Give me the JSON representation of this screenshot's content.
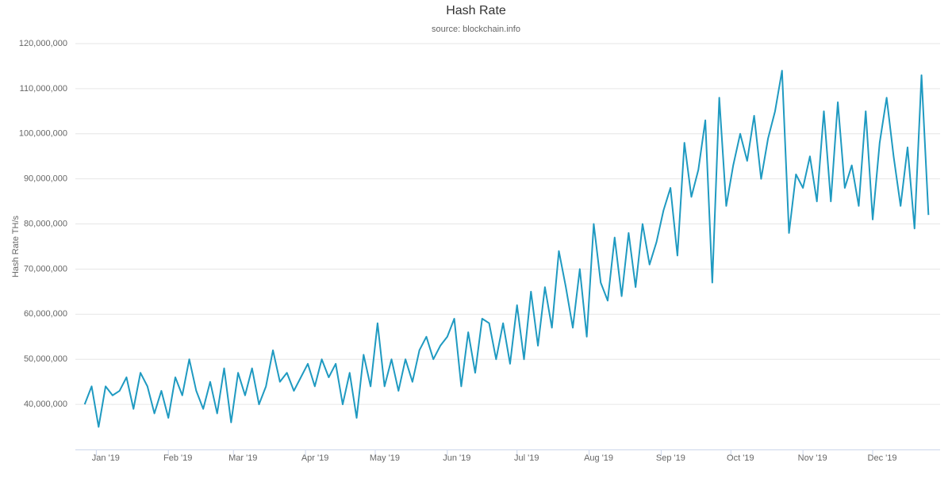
{
  "chart_data": {
    "type": "line",
    "title": "Hash Rate",
    "subtitle": "source: blockchain.info",
    "y_label": "Hash Rate TH/s",
    "color": "#1f9ac1",
    "grid": true,
    "xlim": [
      -9,
      363
    ],
    "ylim": [
      30000000,
      120000000
    ],
    "xticks": [
      {
        "value": 0,
        "label": "Jan '19"
      },
      {
        "value": 31,
        "label": "Feb '19"
      },
      {
        "value": 59,
        "label": "Mar '19"
      },
      {
        "value": 90,
        "label": "Apr '19"
      },
      {
        "value": 120,
        "label": "May '19"
      },
      {
        "value": 151,
        "label": "Jun '19"
      },
      {
        "value": 181,
        "label": "Jul '19"
      },
      {
        "value": 212,
        "label": "Aug '19"
      },
      {
        "value": 243,
        "label": "Sep '19"
      },
      {
        "value": 273,
        "label": "Oct '19"
      },
      {
        "value": 304,
        "label": "Nov '19"
      },
      {
        "value": 334,
        "label": "Dec '19"
      }
    ],
    "yticks": [
      {
        "value": 40000000,
        "label": "40,000,000"
      },
      {
        "value": 50000000,
        "label": "50,000,000"
      },
      {
        "value": 60000000,
        "label": "60,000,000"
      },
      {
        "value": 70000000,
        "label": "70,000,000"
      },
      {
        "value": 80000000,
        "label": "80,000,000"
      },
      {
        "value": 90000000,
        "label": "90,000,000"
      },
      {
        "value": 100000000,
        "label": "100,000,000"
      },
      {
        "value": 110000000,
        "label": "110,000,000"
      },
      {
        "value": 120000000,
        "label": "120,000,000"
      }
    ],
    "x": [
      -5,
      -2,
      1,
      4,
      7,
      10,
      13,
      16,
      19,
      22,
      25,
      28,
      31,
      34,
      37,
      40,
      43,
      46,
      49,
      52,
      55,
      58,
      61,
      64,
      67,
      70,
      73,
      76,
      79,
      82,
      85,
      88,
      91,
      94,
      97,
      100,
      103,
      106,
      109,
      112,
      115,
      118,
      121,
      124,
      127,
      130,
      133,
      136,
      139,
      142,
      145,
      148,
      151,
      154,
      157,
      160,
      163,
      166,
      169,
      172,
      175,
      178,
      181,
      184,
      187,
      190,
      193,
      196,
      199,
      202,
      205,
      208,
      211,
      214,
      217,
      220,
      223,
      226,
      229,
      232,
      235,
      238,
      241,
      244,
      247,
      250,
      253,
      256,
      259,
      262,
      265,
      268,
      271,
      274,
      277,
      280,
      283,
      286,
      289,
      292,
      295,
      298,
      301,
      304,
      307,
      310,
      313,
      316,
      319,
      322,
      325,
      328,
      331,
      334,
      337,
      340,
      343,
      346,
      349,
      352,
      355,
      358
    ],
    "values": [
      40000000,
      44000000,
      35000000,
      44000000,
      42000000,
      43000000,
      46000000,
      39000000,
      47000000,
      44000000,
      38000000,
      43000000,
      37000000,
      46000000,
      42000000,
      50000000,
      43000000,
      39000000,
      45000000,
      38000000,
      48000000,
      36000000,
      47000000,
      42000000,
      48000000,
      40000000,
      44000000,
      52000000,
      45000000,
      47000000,
      43000000,
      46000000,
      49000000,
      44000000,
      50000000,
      46000000,
      49000000,
      40000000,
      47000000,
      37000000,
      51000000,
      44000000,
      58000000,
      44000000,
      50000000,
      43000000,
      50000000,
      45000000,
      52000000,
      55000000,
      50000000,
      53000000,
      55000000,
      59000000,
      44000000,
      56000000,
      47000000,
      59000000,
      58000000,
      50000000,
      58000000,
      49000000,
      62000000,
      50000000,
      65000000,
      53000000,
      66000000,
      57000000,
      74000000,
      66000000,
      57000000,
      70000000,
      55000000,
      80000000,
      67000000,
      63000000,
      77000000,
      64000000,
      78000000,
      66000000,
      80000000,
      71000000,
      76000000,
      83000000,
      88000000,
      73000000,
      98000000,
      86000000,
      92000000,
      103000000,
      67000000,
      108000000,
      84000000,
      93000000,
      100000000,
      94000000,
      104000000,
      90000000,
      99000000,
      105000000,
      114000000,
      78000000,
      91000000,
      88000000,
      95000000,
      85000000,
      105000000,
      85000000,
      107000000,
      88000000,
      93000000,
      84000000,
      105000000,
      81000000,
      98000000,
      108000000,
      95000000,
      84000000,
      97000000,
      79000000,
      113000000,
      82000000
    ]
  }
}
